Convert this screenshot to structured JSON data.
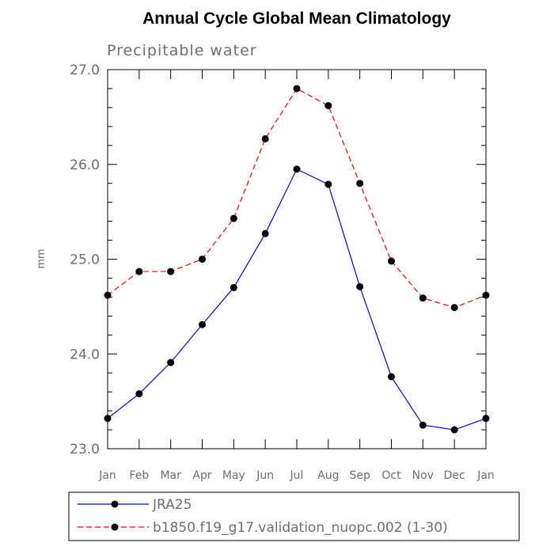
{
  "chart_data": {
    "type": "line",
    "title": "Annual Cycle Global Mean Climatology",
    "subtitle": "Precipitable water",
    "xlabel": "",
    "ylabel": "mm",
    "categories": [
      "Jan",
      "Feb",
      "Mar",
      "Apr",
      "May",
      "Jun",
      "Jul",
      "Aug",
      "Sep",
      "Oct",
      "Nov",
      "Dec",
      "Jan"
    ],
    "ylim": [
      23.0,
      27.0
    ],
    "yticks": [
      "23.0",
      "24.0",
      "25.0",
      "26.0",
      "27.0"
    ],
    "grid": false,
    "legend_position": "bottom",
    "series": [
      {
        "name": "JRA25",
        "color": "#0000ff",
        "dash": "solid",
        "values": [
          23.32,
          23.58,
          23.91,
          24.31,
          24.7,
          25.27,
          25.95,
          25.79,
          24.71,
          23.76,
          23.25,
          23.2,
          23.32
        ]
      },
      {
        "name": "b1850.f19_g17.validation_nuopc.002 (1-30)",
        "color": "#ff0000",
        "dash": "dashed",
        "values": [
          24.62,
          24.87,
          24.87,
          25.0,
          25.43,
          26.27,
          26.8,
          26.62,
          25.8,
          24.98,
          24.59,
          24.49,
          24.62
        ]
      }
    ]
  }
}
